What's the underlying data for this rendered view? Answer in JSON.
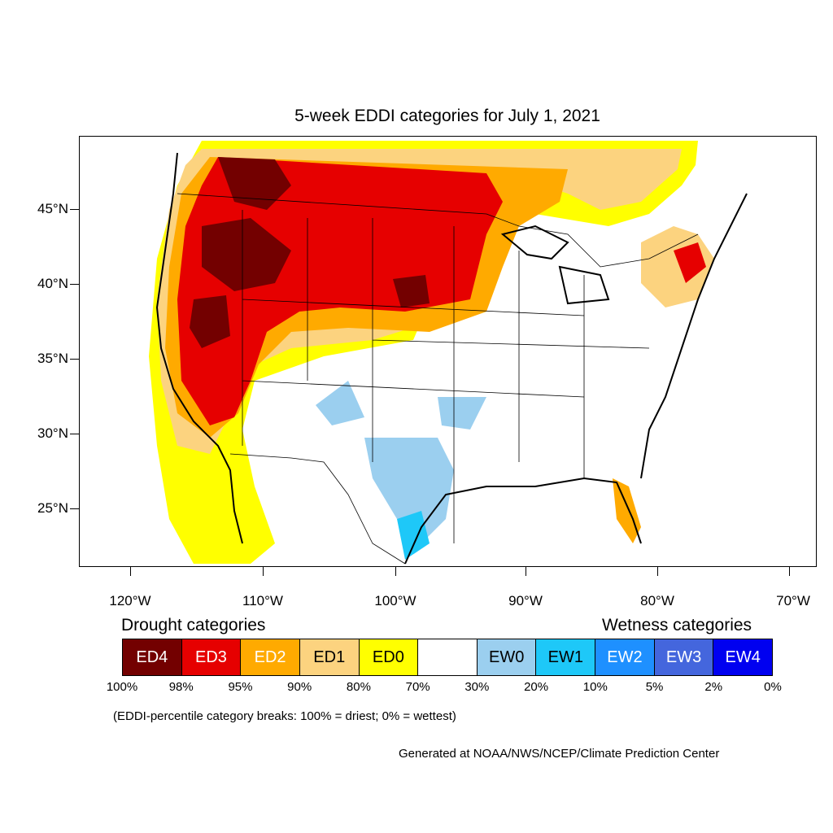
{
  "title": "5-week EDDI categories for July 1, 2021",
  "axes": {
    "latitude_labels": [
      "45°N",
      "40°N",
      "35°N",
      "30°N",
      "25°N"
    ],
    "longitude_labels": [
      "120°W",
      "110°W",
      "100°W",
      "90°W",
      "80°W",
      "70°W"
    ]
  },
  "legend": {
    "drought_heading": "Drought categories",
    "wetness_heading": "Wetness categories",
    "categories": [
      {
        "label": "ED4",
        "color": "#730000",
        "text_color": "#ffffff"
      },
      {
        "label": "ED3",
        "color": "#e60000",
        "text_color": "#ffffff"
      },
      {
        "label": "ED2",
        "color": "#ffaa00",
        "text_color": "#ffffff"
      },
      {
        "label": "ED1",
        "color": "#fcd37f",
        "text_color": "#000000"
      },
      {
        "label": "ED0",
        "color": "#ffff00",
        "text_color": "#000000"
      },
      {
        "label": "",
        "color": "#ffffff",
        "text_color": "#000000"
      },
      {
        "label": "EW0",
        "color": "#9bcfef",
        "text_color": "#000000"
      },
      {
        "label": "EW1",
        "color": "#1ec8f8",
        "text_color": "#000000"
      },
      {
        "label": "EW2",
        "color": "#1e90ff",
        "text_color": "#ffffff"
      },
      {
        "label": "EW3",
        "color": "#4466dd",
        "text_color": "#ffffff"
      },
      {
        "label": "EW4",
        "color": "#0000f0",
        "text_color": "#ffffff"
      }
    ],
    "breaks": [
      "100%",
      "98%",
      "95%",
      "90%",
      "80%",
      "70%",
      "30%",
      "20%",
      "10%",
      "5%",
      "2%",
      "0%"
    ]
  },
  "note": "(EDDI-percentile category breaks: 100% = driest; 0% = wettest)",
  "credit": "Generated at NOAA/NWS/NCEP/Climate Prediction Center"
}
